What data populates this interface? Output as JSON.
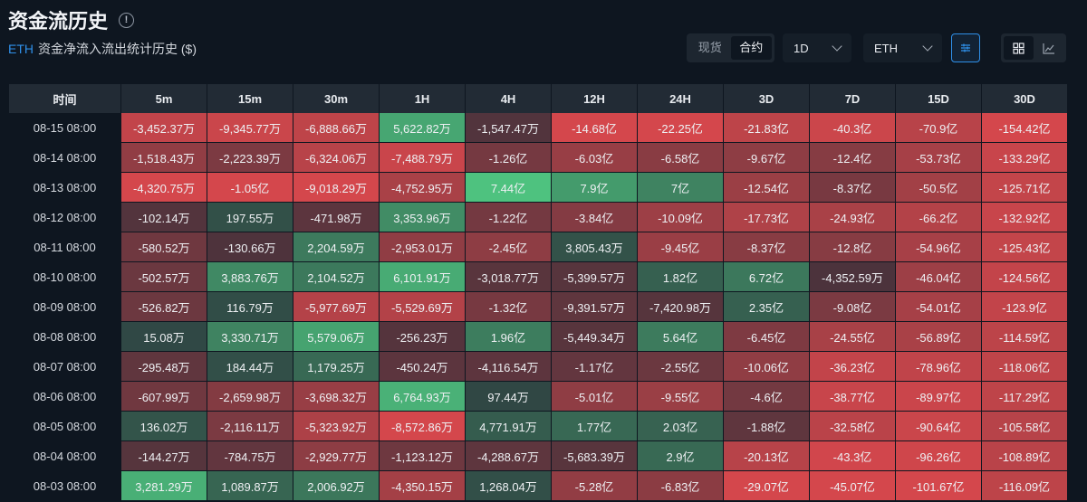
{
  "title": "资金流历史",
  "subtitle": {
    "coin": "ETH",
    "text": "资金净流入流出统计历史 ($)"
  },
  "controls": {
    "market_tabs": [
      "现货",
      "合约"
    ],
    "active_market": 1,
    "interval": "1D",
    "symbol": "ETH"
  },
  "table": {
    "headers": [
      "时间",
      "5m",
      "15m",
      "30m",
      "1H",
      "4H",
      "12H",
      "24H",
      "3D",
      "7D",
      "15D",
      "30D"
    ],
    "rows": [
      {
        "time": "08-15 08:00",
        "cells": [
          "-3,452.37万",
          "-9,345.77万",
          "-6,888.66万",
          "5,622.82万",
          "-1,547.47万",
          "-14.68亿",
          "-22.25亿",
          "-21.83亿",
          "-40.3亿",
          "-70.9亿",
          "-154.42亿"
        ]
      },
      {
        "time": "08-14 08:00",
        "cells": [
          "-1,518.43万",
          "-2,223.39万",
          "-6,324.06万",
          "-7,488.79万",
          "-1.26亿",
          "-6.03亿",
          "-6.58亿",
          "-9.67亿",
          "-12.4亿",
          "-53.73亿",
          "-133.29亿"
        ]
      },
      {
        "time": "08-13 08:00",
        "cells": [
          "-4,320.75万",
          "-1.05亿",
          "-9,018.29万",
          "-4,752.95万",
          "7.44亿",
          "7.9亿",
          "7亿",
          "-12.54亿",
          "-8.37亿",
          "-50.5亿",
          "-125.71亿"
        ]
      },
      {
        "time": "08-12 08:00",
        "cells": [
          "-102.14万",
          "197.55万",
          "-471.98万",
          "3,353.96万",
          "-1.22亿",
          "-3.84亿",
          "-10.09亿",
          "-17.73亿",
          "-24.93亿",
          "-66.2亿",
          "-132.92亿"
        ]
      },
      {
        "time": "08-11 08:00",
        "cells": [
          "-580.52万",
          "-130.66万",
          "2,204.59万",
          "-2,953.01万",
          "-2.45亿",
          "3,805.43万",
          "-9.45亿",
          "-8.37亿",
          "-12.8亿",
          "-54.96亿",
          "-125.43亿"
        ]
      },
      {
        "time": "08-10 08:00",
        "cells": [
          "-502.57万",
          "3,883.76万",
          "2,104.52万",
          "6,101.91万",
          "-3,018.77万",
          "-5,399.57万",
          "1.82亿",
          "6.72亿",
          "-4,352.59万",
          "-46.04亿",
          "-124.56亿"
        ]
      },
      {
        "time": "08-09 08:00",
        "cells": [
          "-526.82万",
          "116.79万",
          "-5,977.69万",
          "-5,529.69万",
          "-1.32亿",
          "-9,391.57万",
          "-7,420.98万",
          "2.35亿",
          "-9.08亿",
          "-54.01亿",
          "-123.9亿"
        ]
      },
      {
        "time": "08-08 08:00",
        "cells": [
          "15.08万",
          "3,330.71万",
          "5,579.06万",
          "-256.23万",
          "1.96亿",
          "-5,449.34万",
          "5.64亿",
          "-6.45亿",
          "-24.55亿",
          "-56.89亿",
          "-114.59亿"
        ]
      },
      {
        "time": "08-07 08:00",
        "cells": [
          "-295.48万",
          "184.44万",
          "1,179.25万",
          "-450.24万",
          "-4,116.54万",
          "-1.17亿",
          "-2.55亿",
          "-10.06亿",
          "-36.23亿",
          "-78.96亿",
          "-118.06亿"
        ]
      },
      {
        "time": "08-06 08:00",
        "cells": [
          "-607.99万",
          "-2,659.98万",
          "-3,698.32万",
          "6,764.93万",
          "97.44万",
          "-5.01亿",
          "-9.55亿",
          "-4.6亿",
          "-38.77亿",
          "-89.97亿",
          "-117.29亿"
        ]
      },
      {
        "time": "08-05 08:00",
        "cells": [
          "136.02万",
          "-2,116.11万",
          "-5,323.92万",
          "-8,572.86万",
          "4,771.91万",
          "1.77亿",
          "2.03亿",
          "-1.88亿",
          "-32.58亿",
          "-90.64亿",
          "-105.58亿"
        ]
      },
      {
        "time": "08-04 08:00",
        "cells": [
          "-144.27万",
          "-784.75万",
          "-2,929.77万",
          "-1,123.12万",
          "-4,288.67万",
          "-5,683.39万",
          "2.9亿",
          "-20.13亿",
          "-43.3亿",
          "-96.26亿",
          "-108.89亿"
        ]
      },
      {
        "time": "08-03 08:00",
        "cells": [
          "3,281.29万",
          "1,089.87万",
          "2,006.92万",
          "-4,350.15万",
          "1,268.04万",
          "-5.28亿",
          "-6.83亿",
          "-29.07亿",
          "-45.07亿",
          "-101.67亿",
          "-116.09亿"
        ]
      }
    ]
  },
  "colors": {
    "background": "#0e1620",
    "header_bg": "#222b35",
    "accent_blue": "#2f8fe8",
    "positive": "#4ec27f",
    "negative": "#d4474c",
    "neutral": "#2a2e38"
  }
}
